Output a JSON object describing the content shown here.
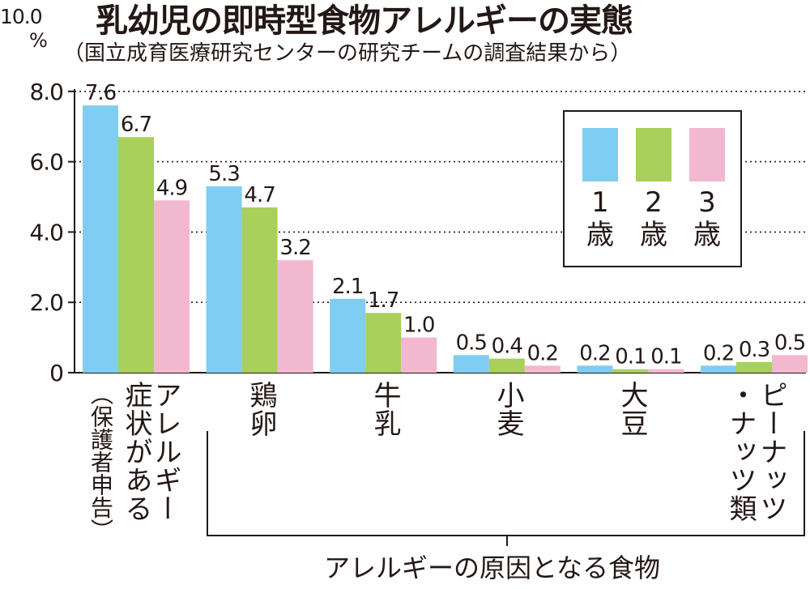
{
  "title": "乳幼児の即時型食物アレルギーの実態",
  "subtitle": "（国立成育医療研究センターの研究チームの調査結果から）",
  "unit": {
    "value": "10.0",
    "symbol": "%"
  },
  "x_title": "アレルギーの原因となる食物",
  "colors": {
    "age1": "#7fcdf0",
    "age2": "#a8d05a",
    "age3": "#f2b8cf"
  },
  "chart_data": {
    "type": "bar",
    "title": "乳幼児の即時型食物アレルギーの実態",
    "subtitle": "（国立成育医療研究センターの研究チームの調査結果から）",
    "xlabel": "アレルギーの原因となる食物",
    "ylabel": "",
    "unit": "%",
    "ylim": [
      0,
      10
    ],
    "yticks": [
      "0",
      "2.0",
      "4.0",
      "6.0",
      "8.0",
      "10.0"
    ],
    "grid": true,
    "legend_position": "top-right",
    "categories": [
      {
        "main": "アレルギー症状がある",
        "note": "（保護者申告）"
      },
      {
        "main": "鶏卵"
      },
      {
        "main": "牛乳"
      },
      {
        "main": "小麦"
      },
      {
        "main": "大豆"
      },
      {
        "main": "ピーナッツ・ナッツ類"
      }
    ],
    "series": [
      {
        "name": "1歳",
        "legend_num": "1",
        "legend_unit": "歳",
        "color": "#7fcdf0",
        "values": [
          7.6,
          5.3,
          2.1,
          0.5,
          0.2,
          0.2
        ],
        "labels": [
          "7.6",
          "5.3",
          "2.1",
          "0.5",
          "0.2",
          "0.2"
        ]
      },
      {
        "name": "2歳",
        "legend_num": "2",
        "legend_unit": "歳",
        "color": "#a8d05a",
        "values": [
          6.7,
          4.7,
          1.7,
          0.4,
          0.1,
          0.3
        ],
        "labels": [
          "6.7",
          "4.7",
          "1.7",
          "0.4",
          "0.1",
          "0.3"
        ]
      },
      {
        "name": "3歳",
        "legend_num": "3",
        "legend_unit": "歳",
        "color": "#f2b8cf",
        "values": [
          4.9,
          3.2,
          1.0,
          0.2,
          0.1,
          0.5
        ],
        "labels": [
          "4.9",
          "3.2",
          "1.0",
          "0.2",
          "0.1",
          "0.5"
        ]
      }
    ]
  }
}
